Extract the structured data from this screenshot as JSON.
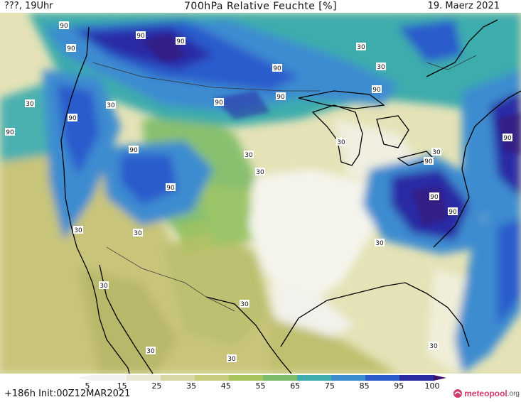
{
  "header": {
    "left": "???, 19Uhr",
    "center": "700hPa Relative Feuchte [%]",
    "right": "19. Maerz 2021"
  },
  "colorbar": {
    "ticks": [
      "5",
      "15",
      "25",
      "35",
      "45",
      "55",
      "65",
      "75",
      "85",
      "95",
      "100"
    ],
    "colors": [
      "#f2f2f2",
      "#e8e8d4",
      "#d8d6a4",
      "#c6cc7c",
      "#a8c45c",
      "#7cbc6c",
      "#3cacac",
      "#3c8cd0",
      "#2c5ccc",
      "#2a2ca4",
      "#3a126e"
    ]
  },
  "contour_labels": [
    "90",
    "30"
  ],
  "footer": {
    "left": "+186h  Init:00Z12MAR2021",
    "logo_main": "meteopool",
    "logo_suffix": ".org"
  }
}
